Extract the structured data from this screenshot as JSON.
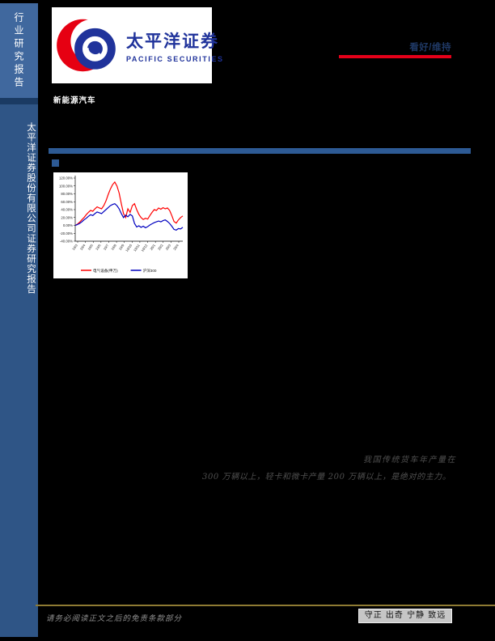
{
  "sidebar": {
    "top_label": "行业研究报告",
    "bottom_label": "太平洋证券股份有限公司证券研究报告"
  },
  "header": {
    "logo_cn": "太平洋证券",
    "logo_en": "PACIFIC SECURITIES",
    "industry_label": "新能源汽车",
    "rating": "看好/维持"
  },
  "body_text": {
    "line1": "我国传统货车年产量在",
    "line2": "300 万辆以上，轻卡和微卡产量 200 万辆以上，是绝对的主力。"
  },
  "footer": {
    "disclaimer": "请务必阅读正文之后的免责条款部分",
    "motto": "守正 出奇 宁静 致远"
  },
  "colors": {
    "sidebar_top_blue": "#40689E",
    "sidebar_main_blue": "#2F5586",
    "section_blue": "#2D5A94",
    "rating_red": "#E50019",
    "rating_text_blue": "#1F3864",
    "logo_blue": "#20339B",
    "logo_red": "#E60012",
    "gold_line": "#8E7B33"
  },
  "chart_data": {
    "type": "line",
    "title": "",
    "ylim": [
      -40,
      120
    ],
    "y_ticks": [
      "120.00%",
      "100.00%",
      "80.00%",
      "60.00%",
      "40.00%",
      "20.00%",
      "0.00%",
      "-20.00%",
      "-40.00%"
    ],
    "x_ticks": [
      "19/3",
      "19/4",
      "19/5",
      "19/6",
      "19/7",
      "19/8",
      "19/9",
      "19/10",
      "19/11",
      "19/12",
      "20/1",
      "20/2",
      "20/3",
      "20/4"
    ],
    "grid": false,
    "legend_position": "bottom",
    "series": [
      {
        "name": "电气设备(申万)",
        "color": "#FF0000",
        "values": [
          0,
          3,
          8,
          14,
          20,
          27,
          33,
          38,
          36,
          42,
          47,
          44,
          42,
          50,
          62,
          78,
          92,
          103,
          110,
          100,
          82,
          55,
          30,
          20,
          42,
          33,
          50,
          55,
          40,
          28,
          20,
          15,
          18,
          16,
          25,
          33,
          40,
          38,
          44,
          41,
          45,
          42,
          44,
          38,
          25,
          10,
          6,
          14,
          20,
          24
        ]
      },
      {
        "name": "沪深300",
        "color": "#0000BF",
        "values": [
          0,
          2,
          5,
          9,
          14,
          18,
          23,
          27,
          25,
          30,
          34,
          32,
          30,
          35,
          40,
          45,
          50,
          53,
          55,
          50,
          42,
          30,
          20,
          26,
          22,
          28,
          24,
          5,
          -4,
          -1,
          -5,
          -2,
          -6,
          -3,
          1,
          4,
          7,
          9,
          11,
          9,
          12,
          14,
          10,
          5,
          -2,
          -10,
          -12,
          -8,
          -9,
          -5
        ]
      }
    ]
  }
}
